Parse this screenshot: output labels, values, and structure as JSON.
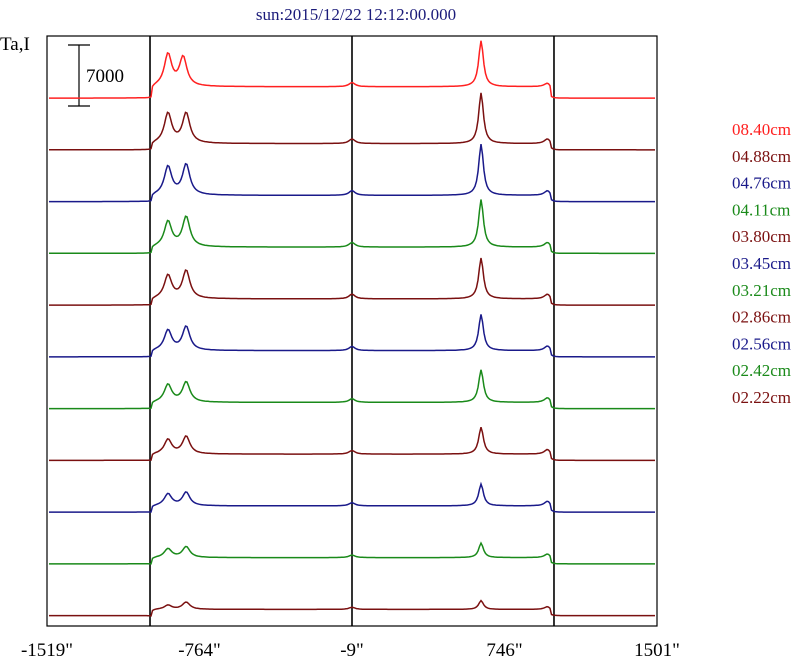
{
  "chart_data": {
    "type": "line",
    "title": "sun:2015/12/22 12:12:00.000",
    "ylabel": "Ta,I",
    "xlabel": "",
    "x_tick_labels": [
      "-1519\"",
      "-764\"",
      "-9\"",
      "746\"",
      "1501\""
    ],
    "x_ticks": [
      -1519,
      -764,
      -9,
      746,
      1501
    ],
    "xlim": [
      -1519,
      1501
    ],
    "scale_bar": {
      "label": "7000",
      "value": 7000
    },
    "vertical_markers": [
      -1009,
      -9,
      991
    ],
    "grid": false,
    "legend_position": "right",
    "series": [
      {
        "name": "08.40cm",
        "color": "#ff2020",
        "offset": 100000,
        "peaks": [
          [
            -1000,
            -150
          ],
          [
            -920,
            6200
          ],
          [
            -845,
            5600
          ],
          [
            -9,
            800
          ],
          [
            630,
            8900
          ],
          [
            960,
            800
          ]
        ]
      },
      {
        "name": "04.88cm",
        "color": "#7a1010",
        "offset": 90000,
        "peaks": [
          [
            -1000,
            -150
          ],
          [
            -920,
            5800
          ],
          [
            -830,
            5800
          ],
          [
            -9,
            900
          ],
          [
            630,
            9800
          ],
          [
            960,
            1000
          ]
        ]
      },
      {
        "name": "04.76cm",
        "color": "#1a1a8a",
        "offset": 80000,
        "peaks": [
          [
            -1000,
            -150
          ],
          [
            -920,
            5500
          ],
          [
            -830,
            5900
          ],
          [
            -9,
            900
          ],
          [
            630,
            9900
          ],
          [
            960,
            1000
          ]
        ]
      },
      {
        "name": "04.11cm",
        "color": "#1a8a1a",
        "offset": 70000,
        "peaks": [
          [
            -1000,
            -150
          ],
          [
            -920,
            4900
          ],
          [
            -830,
            5800
          ],
          [
            -9,
            900
          ],
          [
            630,
            9200
          ],
          [
            960,
            1000
          ]
        ]
      },
      {
        "name": "03.80cm",
        "color": "#7a1010",
        "offset": 60000,
        "peaks": [
          [
            -1000,
            -150
          ],
          [
            -920,
            4500
          ],
          [
            -830,
            5400
          ],
          [
            -9,
            900
          ],
          [
            630,
            7900
          ],
          [
            960,
            1000
          ]
        ]
      },
      {
        "name": "03.45cm",
        "color": "#1a1a8a",
        "offset": 50000,
        "peaks": [
          [
            -1000,
            -150
          ],
          [
            -920,
            3900
          ],
          [
            -830,
            4600
          ],
          [
            -9,
            800
          ],
          [
            630,
            7000
          ],
          [
            960,
            1000
          ]
        ]
      },
      {
        "name": "03.21cm",
        "color": "#1a8a1a",
        "offset": 40000,
        "peaks": [
          [
            -1000,
            -150
          ],
          [
            -920,
            3400
          ],
          [
            -830,
            3900
          ],
          [
            -9,
            700
          ],
          [
            630,
            6300
          ],
          [
            960,
            1000
          ]
        ]
      },
      {
        "name": "02.86cm",
        "color": "#7a1010",
        "offset": 30000,
        "peaks": [
          [
            -1000,
            -150
          ],
          [
            -920,
            2800
          ],
          [
            -830,
            3400
          ],
          [
            -9,
            700
          ],
          [
            630,
            5200
          ],
          [
            960,
            1000
          ]
        ]
      },
      {
        "name": "02.56cm",
        "color": "#1a1a8a",
        "offset": 20000,
        "peaks": [
          [
            -1000,
            -150
          ],
          [
            -920,
            2300
          ],
          [
            -830,
            2600
          ],
          [
            -9,
            600
          ],
          [
            630,
            4200
          ],
          [
            960,
            1000
          ]
        ]
      },
      {
        "name": "02.42cm",
        "color": "#1a8a1a",
        "offset": 10000,
        "peaks": [
          [
            -1000,
            -150
          ],
          [
            -920,
            1700
          ],
          [
            -830,
            2100
          ],
          [
            -9,
            500
          ],
          [
            630,
            2800
          ],
          [
            960,
            800
          ]
        ]
      },
      {
        "name": "02.22cm",
        "color": "#7a1010",
        "offset": 0,
        "peaks": [
          [
            -1000,
            -150
          ],
          [
            -920,
            800
          ],
          [
            -830,
            1400
          ],
          [
            -9,
            400
          ],
          [
            630,
            1700
          ],
          [
            960,
            600
          ]
        ]
      }
    ],
    "ylim": [
      -2000,
      112000
    ]
  }
}
